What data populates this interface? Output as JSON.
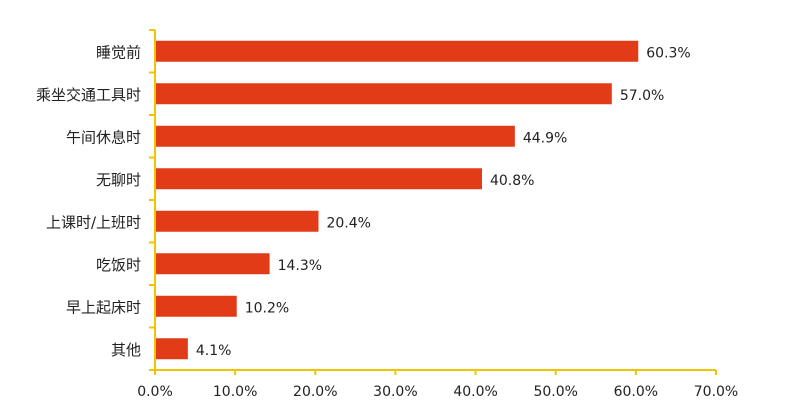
{
  "chart_data": {
    "type": "bar",
    "orientation": "horizontal",
    "categories": [
      "睡觉前",
      "乘坐交通工具时",
      "午间休息时",
      "无聊时",
      "上课时/上班时",
      "吃饭时",
      "早上起床时",
      "其他"
    ],
    "values": [
      60.3,
      57.0,
      44.9,
      40.8,
      20.4,
      14.3,
      10.2,
      4.1
    ],
    "value_labels": [
      "60.3%",
      "57.0%",
      "44.9%",
      "40.8%",
      "20.4%",
      "14.3%",
      "10.2%",
      "4.1%"
    ],
    "title": "",
    "xlabel": "",
    "ylabel": "",
    "xlim": [
      0,
      70
    ],
    "x_ticks": [
      0,
      10,
      20,
      30,
      40,
      50,
      60,
      70
    ],
    "x_tick_labels": [
      "0.0%",
      "10.0%",
      "20.0%",
      "30.0%",
      "40.0%",
      "50.0%",
      "60.0%",
      "70.0%"
    ],
    "grid": false,
    "legend": "none",
    "colors": {
      "bar": "#e23b18",
      "axis": "#f0c400",
      "text": "#222222"
    }
  }
}
